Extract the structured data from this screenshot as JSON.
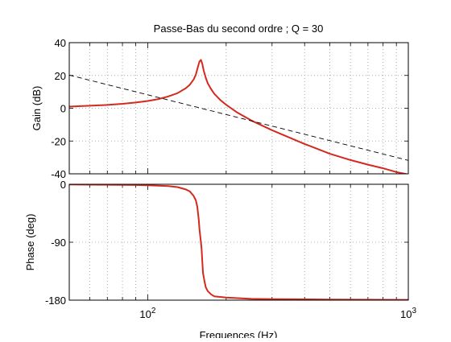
{
  "figure": {
    "title": "Passe-Bas du second ordre ; Q = 30",
    "xlabel": "Frequences  (Hz)"
  },
  "colors": {
    "curve": "#d42a1e",
    "asymptote": "#000000",
    "grid": "#9a9a9a",
    "axes": "#000000",
    "background": "#ffffff"
  },
  "chart_data": [
    {
      "type": "line",
      "panel": "gain",
      "title": "Passe-Bas du second ordre ; Q = 30",
      "xlabel": "",
      "ylabel": "Gain (dB)",
      "xscale": "log",
      "xlim": [
        50,
        1000
      ],
      "ylim": [
        -40,
        40
      ],
      "xticks": [
        100,
        1000
      ],
      "yticks": [
        -40,
        -20,
        0,
        20,
        40
      ],
      "ytick_labels": [
        "-40",
        "-20",
        "0",
        "20",
        "40"
      ],
      "grid": true,
      "resonance_frequency": 160,
      "quality_factor": 30,
      "series": [
        {
          "style": "solid",
          "color": "#d42a1e",
          "x": [
            50,
            60,
            70,
            80,
            90,
            100,
            110,
            120,
            130,
            140,
            145,
            150,
            153,
            156,
            158,
            160,
            162,
            164,
            167,
            170,
            175,
            180,
            190,
            200,
            220,
            250,
            300,
            400,
            500,
            600,
            700,
            800,
            900,
            1000
          ],
          "y": [
            1.0,
            1.5,
            2.0,
            2.7,
            3.5,
            4.4,
            5.6,
            7.2,
            9.2,
            12.2,
            14.3,
            17.5,
            20.5,
            25.5,
            28.5,
            29.5,
            27.0,
            23.0,
            18.6,
            15.2,
            11.7,
            8.9,
            5.0,
            2.1,
            -2.5,
            -7.5,
            -13.4,
            -21.8,
            -27.8,
            -31.6,
            -34.4,
            -36.6,
            -38.9,
            -40.4
          ]
        },
        {
          "style": "dashed",
          "color": "#000000",
          "x": [
            50,
            1000
          ],
          "y": [
            20.2,
            -31.8
          ]
        }
      ]
    },
    {
      "type": "line",
      "panel": "phase",
      "xlabel": "Frequences  (Hz)",
      "ylabel": "Phase (deg)",
      "xscale": "log",
      "xlim": [
        50,
        1000
      ],
      "ylim": [
        -180,
        0
      ],
      "xticks": [
        100,
        1000
      ],
      "yticks": [
        -180,
        -90,
        0
      ],
      "ytick_labels": [
        "-180",
        "-90",
        "0"
      ],
      "grid": true,
      "series": [
        {
          "style": "solid",
          "color": "#d42a1e",
          "x": [
            50,
            70,
            90,
            100,
            110,
            120,
            130,
            140,
            145,
            150,
            153,
            155,
            157,
            158,
            159,
            160,
            161,
            162,
            163,
            165,
            167,
            170,
            175,
            180,
            200,
            250,
            300,
            500,
            1000
          ],
          "y": [
            -0.4,
            -0.7,
            -1.1,
            -1.5,
            -2.1,
            -2.8,
            -4.4,
            -8,
            -11,
            -18,
            -25,
            -35,
            -55,
            -70,
            -80,
            -90,
            -100,
            -120,
            -138,
            -150,
            -160,
            -166,
            -171,
            -174,
            -176,
            -178,
            -178.5,
            -179,
            -179.5
          ]
        },
        {
          "style": "dashed",
          "color": "#000000",
          "x": [
            50,
            1000
          ],
          "y": [
            -180,
            -180
          ]
        }
      ]
    }
  ]
}
